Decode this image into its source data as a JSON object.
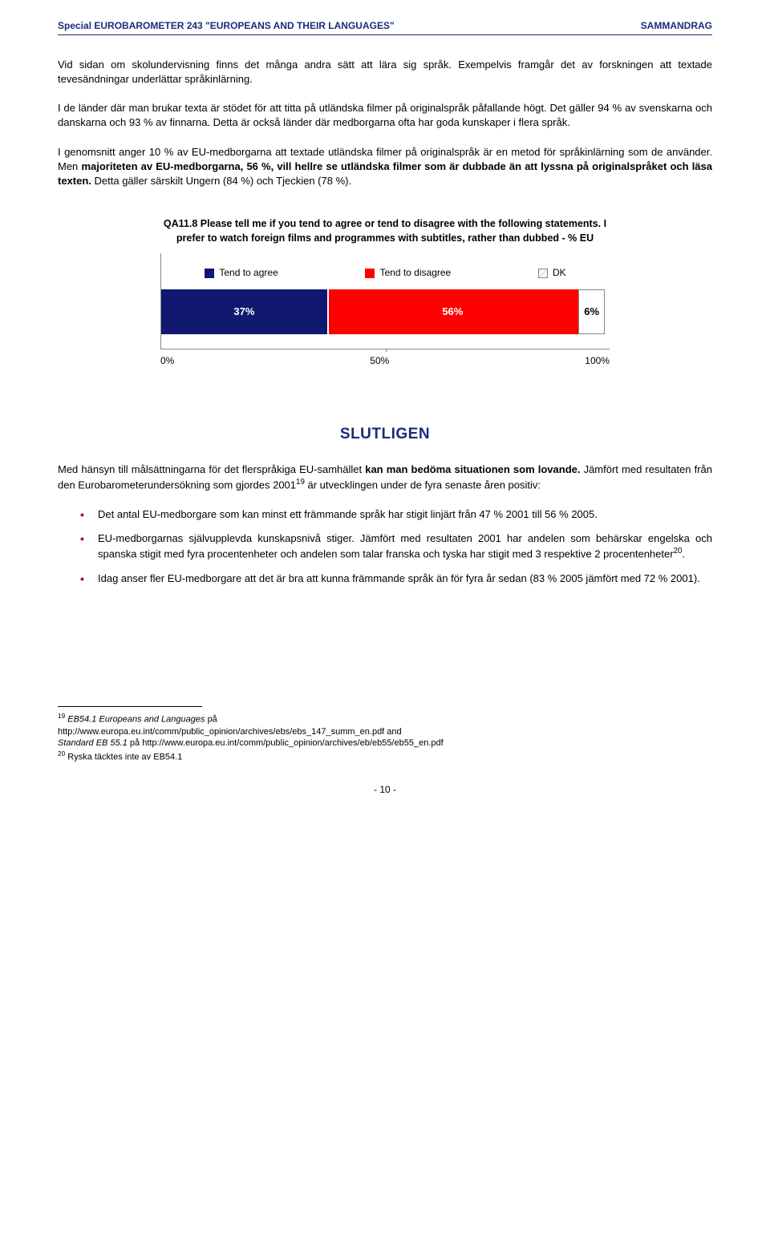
{
  "header": {
    "left": "Special EUROBAROMETER 243 \"EUROPEANS AND THEIR LANGUAGES\"",
    "right": "SAMMANDRAG"
  },
  "paragraphs": {
    "p1": "Vid sidan om skolundervisning finns det många andra sätt att lära sig språk. Exempelvis framgår det av forskningen att textade tevesändningar underlättar språkinlärning.",
    "p2": "I de länder där man brukar texta är stödet för att titta på utländska filmer på originalspråk påfallande högt. Det gäller 94 % av svenskarna och danskarna och 93 % av finnarna. Detta är också länder där medborgarna ofta har goda kunskaper i flera språk.",
    "p3_a": "I genomsnitt anger 10 % av EU-medborgarna att textade utländska filmer på originalspråk är en metod för språkinlärning som de använder. Men ",
    "p3_b": "majoriteten av EU-medborgarna, 56 %, vill hellre se utländska filmer som är dubbade än att lyssna på originalspråket och läsa texten.",
    "p3_c": " Detta gäller särskilt Ungern (84 %) och Tjeckien (78 %)."
  },
  "chart": {
    "title": "QA11.8 Please tell me if you tend to agree or tend to disagree with the following statements. I prefer to watch foreign films and programmes with subtitles, rather than dubbed - % EU",
    "legend": [
      {
        "label": "Tend to agree",
        "color": "#101870"
      },
      {
        "label": "Tend to disagree",
        "color": "#ff0000"
      },
      {
        "label": "DK",
        "color": "#ffffff"
      }
    ],
    "segments": [
      {
        "value": 37,
        "label": "37%",
        "color": "#101870",
        "text_color": "#ffffff"
      },
      {
        "value": 56,
        "label": "56%",
        "color": "#ff0000",
        "text_color": "#ffffff"
      },
      {
        "value": 6,
        "label": "6%",
        "color": "#ffffff",
        "text_color": "#000000"
      }
    ],
    "x_ticks": [
      "0%",
      "50%",
      "100%"
    ],
    "bar_total_pct": 99
  },
  "section_title": "SLUTLIGEN",
  "final": {
    "lead_a": "Med hänsyn till målsättningarna för det flerspråkiga EU-samhället ",
    "lead_b": "kan man bedöma situationen som lovande.",
    "lead_c": " Jämfört med resultaten från den Eurobarometerundersökning som gjordes 2001",
    "lead_sup": "19",
    "lead_d": " är utvecklingen under de fyra senaste åren positiv:",
    "bullets": [
      "Det antal EU-medborgare som kan minst ett främmande språk har stigit linjärt från 47 % 2001 till 56 % 2005.",
      "EU-medborgarnas självupplevda kunskapsnivå stiger. Jämfört med resultaten 2001 har andelen som behärskar engelska och spanska stigit med fyra procentenheter och andelen som talar franska och tyska har stigit med 3 respektive 2 procentenheter",
      "Idag anser fler EU-medborgare att det är bra att kunna främmande språk än för fyra år sedan (83 % 2005 jämfört med 72 % 2001)."
    ],
    "bullet2_sup": "20",
    "bullet2_tail": "."
  },
  "footnotes": {
    "f19_num": "19",
    "f19_a": " EB54.1 Europeans and Languages ",
    "f19_b": "på",
    "f19_line2": "http://www.europa.eu.int/comm/public_opinion/archives/ebs/ebs_147_summ_en.pdf and",
    "f19_line3_a": "Standard EB 55.1 ",
    "f19_line3_b": "på http://www.europa.eu.int/comm/public_opinion/archives/eb/eb55/eb55_en.pdf",
    "f20_num": "20",
    "f20": " Ryska täcktes inte av EB54.1"
  },
  "page_number": "- 10 -"
}
